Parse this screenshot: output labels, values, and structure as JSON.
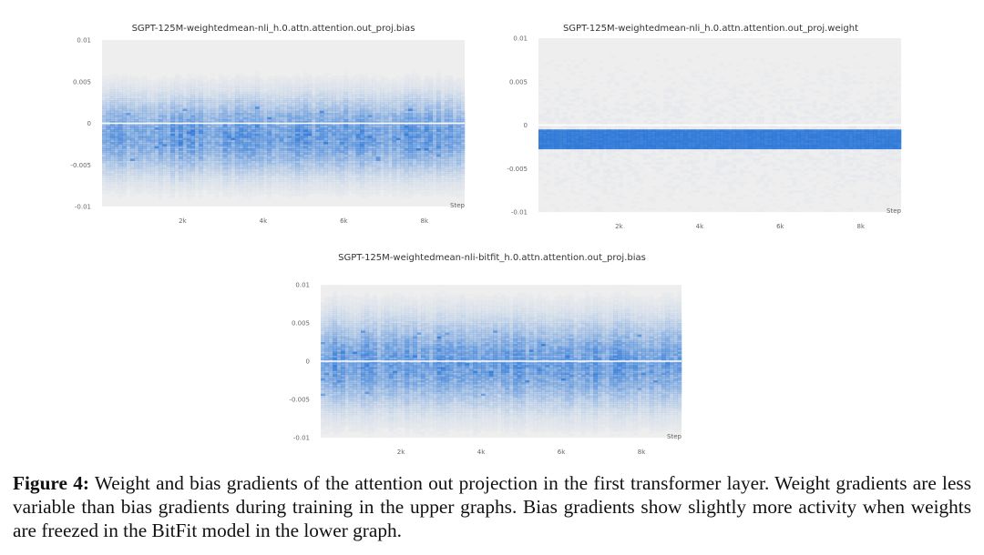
{
  "chart_data": [
    {
      "type": "heatmap",
      "title": "SGPT-125M-weightedmean-nli_h.0.attn.attention.out_proj.bias",
      "xlabel": "Step",
      "ylabel": "",
      "x_ticks": [
        "2k",
        "4k",
        "6k",
        "8k"
      ],
      "y_ticks": [
        "0.01",
        "0.005",
        "0",
        "-0.005",
        "-0.01"
      ],
      "ylim": [
        -0.01,
        0.01
      ],
      "xlim": [
        0,
        9000
      ],
      "distribution": {
        "center": -0.0015,
        "spread": 0.0028,
        "concentration": "moderate",
        "zero_line": true
      },
      "colors": {
        "background": "#eeeeee",
        "cell": "#1f6fd6"
      }
    },
    {
      "type": "heatmap",
      "title": "SGPT-125M-weightedmean-nli_h.0.attn.attention.out_proj.weight",
      "xlabel": "Step",
      "ylabel": "",
      "x_ticks": [
        "2k",
        "4k",
        "6k",
        "8k"
      ],
      "y_ticks": [
        "0.01",
        "0.005",
        "0",
        "-0.005",
        "-0.01"
      ],
      "ylim": [
        -0.01,
        0.01
      ],
      "xlim": [
        0,
        9000
      ],
      "distribution": {
        "center": -0.0016,
        "spread": 0.0012,
        "concentration": "dense",
        "zero_line": true
      },
      "colors": {
        "background": "#eeeeee",
        "cell": "#1f6fd6"
      }
    },
    {
      "type": "heatmap",
      "title": "SGPT-125M-weightedmean-nli-bitfit_h.0.attn.attention.out_proj.bias",
      "xlabel": "Step",
      "ylabel": "",
      "x_ticks": [
        "2k",
        "4k",
        "6k",
        "8k"
      ],
      "y_ticks": [
        "0.01",
        "0.005",
        "0",
        "-0.005",
        "-0.01"
      ],
      "ylim": [
        -0.01,
        0.01
      ],
      "xlim": [
        0,
        9000
      ],
      "distribution": {
        "center": -0.0003,
        "spread": 0.0035,
        "concentration": "moderate",
        "zero_line": true
      },
      "colors": {
        "background": "#eeeeee",
        "cell": "#1f6fd6"
      }
    }
  ],
  "caption": {
    "label": "Figure 4:",
    "text": " Weight and bias gradients of the attention out projection in the first transformer layer. Weight gradients are less variable than bias gradients during training in the upper graphs. Bias gradients show slightly more activity when weights are freezed in the BitFit model in the lower graph."
  }
}
